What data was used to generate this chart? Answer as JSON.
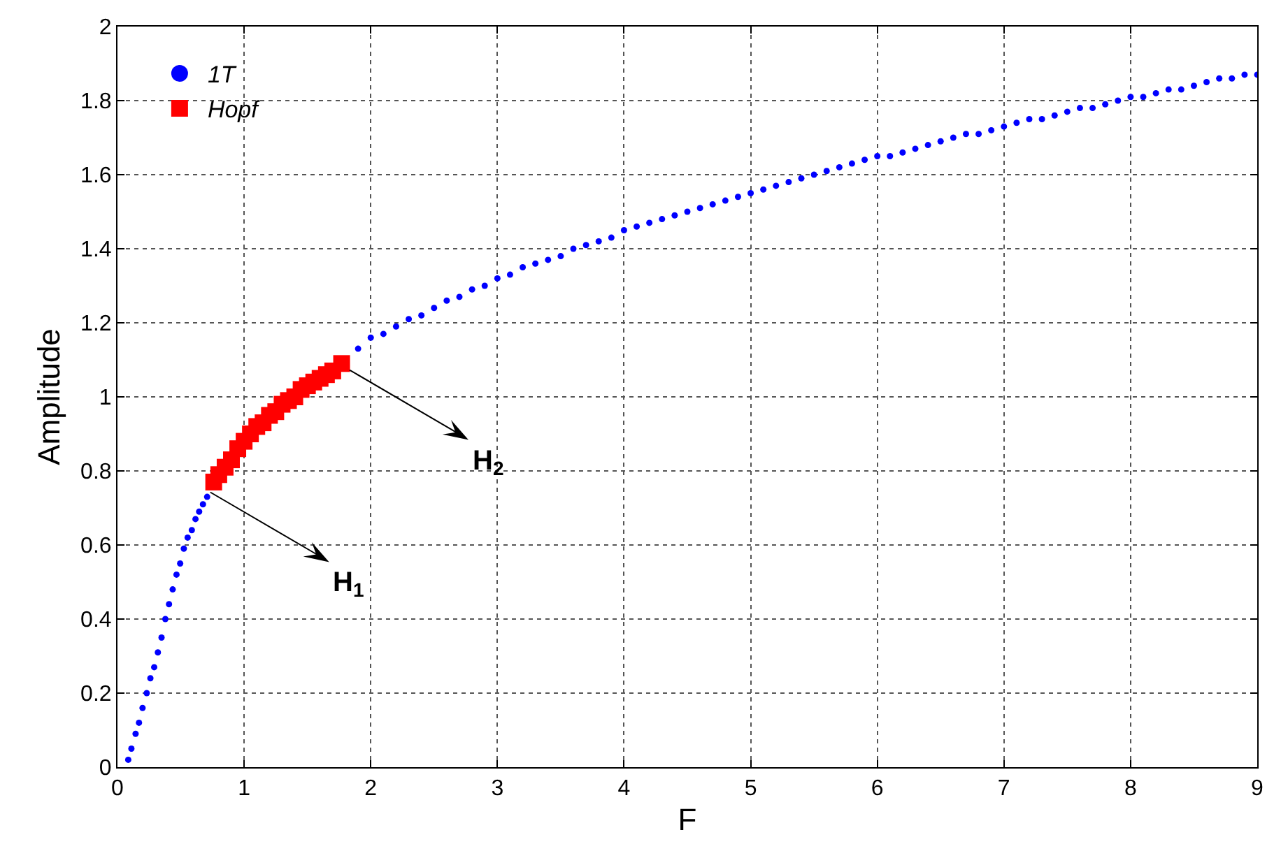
{
  "chart_data": {
    "type": "scatter",
    "xlabel": "F",
    "ylabel": "Amplitude",
    "xlim": [
      0,
      9
    ],
    "xticks": [
      0,
      1,
      2,
      3,
      4,
      5,
      6,
      7,
      8,
      9
    ],
    "ylim": [
      0,
      2
    ],
    "yticks": [
      0,
      0.2,
      0.4,
      0.6,
      0.8,
      1,
      1.2,
      1.4,
      1.6,
      1.8,
      2
    ],
    "grid": true,
    "legend": "top left",
    "series": [
      {
        "name": "1T",
        "color": "#0000ff",
        "marker": "circle",
        "x": [
          0.085,
          0.11,
          0.143,
          0.17,
          0.198,
          0.231,
          0.26,
          0.29,
          0.319,
          0.348,
          0.378,
          0.407,
          0.436,
          0.466,
          0.495,
          0.524,
          0.554,
          0.587,
          0.616,
          0.645,
          0.675,
          0.708,
          1.9,
          2.0,
          2.1,
          2.2,
          2.3,
          2.4,
          2.5,
          2.6,
          2.7,
          2.8,
          2.9,
          3.0,
          3.1,
          3.2,
          3.3,
          3.4,
          3.5,
          3.6,
          3.7,
          3.8,
          3.9,
          4.0,
          4.1,
          4.2,
          4.3,
          4.4,
          4.5,
          4.6,
          4.7,
          4.8,
          4.9,
          5.0,
          5.1,
          5.2,
          5.3,
          5.4,
          5.5,
          5.6,
          5.7,
          5.8,
          5.9,
          6.0,
          6.1,
          6.2,
          6.3,
          6.4,
          6.5,
          6.6,
          6.7,
          6.8,
          6.9,
          7.0,
          7.1,
          7.2,
          7.3,
          7.4,
          7.5,
          7.6,
          7.7,
          7.8,
          7.9,
          8.0,
          8.1,
          8.2,
          8.3,
          8.4,
          8.5,
          8.6,
          8.7,
          8.8,
          8.9,
          9.0
        ],
        "values": [
          0.02,
          0.05,
          0.09,
          0.12,
          0.16,
          0.2,
          0.24,
          0.27,
          0.31,
          0.35,
          0.4,
          0.44,
          0.48,
          0.52,
          0.55,
          0.59,
          0.62,
          0.64,
          0.67,
          0.69,
          0.71,
          0.73,
          1.13,
          1.16,
          1.17,
          1.19,
          1.21,
          1.22,
          1.24,
          1.26,
          1.27,
          1.29,
          1.3,
          1.32,
          1.33,
          1.35,
          1.36,
          1.37,
          1.38,
          1.4,
          1.41,
          1.42,
          1.43,
          1.45,
          1.46,
          1.47,
          1.48,
          1.49,
          1.5,
          1.51,
          1.52,
          1.53,
          1.54,
          1.55,
          1.56,
          1.57,
          1.58,
          1.59,
          1.6,
          1.61,
          1.62,
          1.63,
          1.64,
          1.65,
          1.65,
          1.66,
          1.67,
          1.68,
          1.69,
          1.7,
          1.71,
          1.71,
          1.72,
          1.73,
          1.74,
          1.75,
          1.75,
          1.76,
          1.77,
          1.78,
          1.78,
          1.79,
          1.8,
          1.81,
          1.81,
          1.82,
          1.83,
          1.83,
          1.84,
          1.85,
          1.86,
          1.86,
          1.87,
          1.87
        ]
      },
      {
        "name": "Hopf",
        "color": "#ff0000",
        "marker": "square",
        "x": [
          0.76,
          0.8,
          0.85,
          0.9,
          0.95,
          1.0,
          1.05,
          1.1,
          1.15,
          1.2,
          1.25,
          1.3,
          1.35,
          1.4,
          1.45,
          1.5,
          1.55,
          1.6,
          1.65,
          1.7,
          1.77
        ],
        "values": [
          0.77,
          0.79,
          0.81,
          0.83,
          0.86,
          0.88,
          0.9,
          0.92,
          0.93,
          0.95,
          0.96,
          0.98,
          0.99,
          1.0,
          1.02,
          1.03,
          1.04,
          1.05,
          1.06,
          1.07,
          1.09
        ]
      }
    ],
    "annotations": [
      {
        "text": "H$_{1}$",
        "x": 0.7,
        "y": 0.75
      },
      {
        "text": "H$_{2}$",
        "x": 1.8,
        "y": 1.08
      }
    ]
  }
}
